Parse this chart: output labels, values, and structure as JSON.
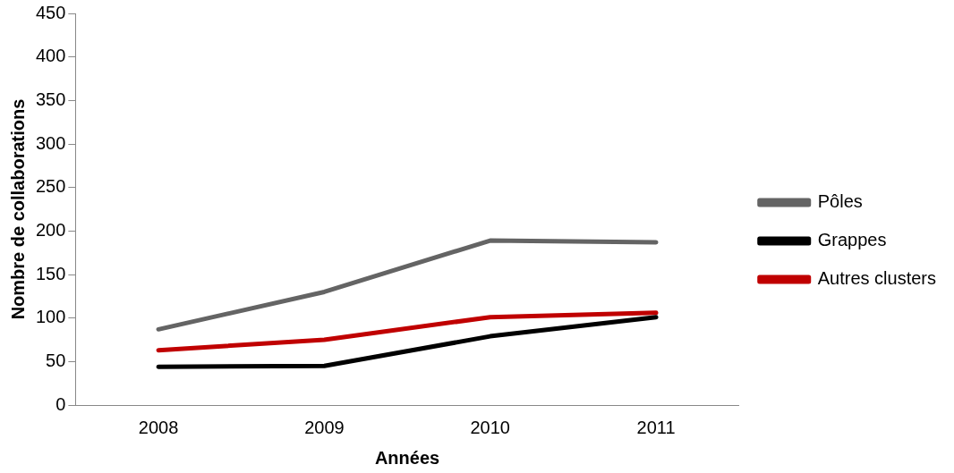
{
  "chart_data": {
    "type": "line",
    "xlabel": "Années",
    "ylabel": "Nombre de collaborations",
    "categories": [
      "2008",
      "2009",
      "2010",
      "2011"
    ],
    "series": [
      {
        "name": "Pôles",
        "color": "#646464",
        "values": [
          87,
          130,
          189,
          187
        ]
      },
      {
        "name": "Grappes",
        "color": "#000000",
        "values": [
          44,
          45,
          79,
          101
        ]
      },
      {
        "name": "Autres clusters",
        "color": "#c00000",
        "values": [
          63,
          75,
          101,
          106
        ]
      }
    ],
    "ylim": [
      0,
      450
    ],
    "yticks": [
      0,
      50,
      100,
      150,
      200,
      250,
      300,
      350,
      400,
      450
    ],
    "grid": false,
    "legend": "right",
    "marker": "none",
    "line_style": "solid"
  }
}
